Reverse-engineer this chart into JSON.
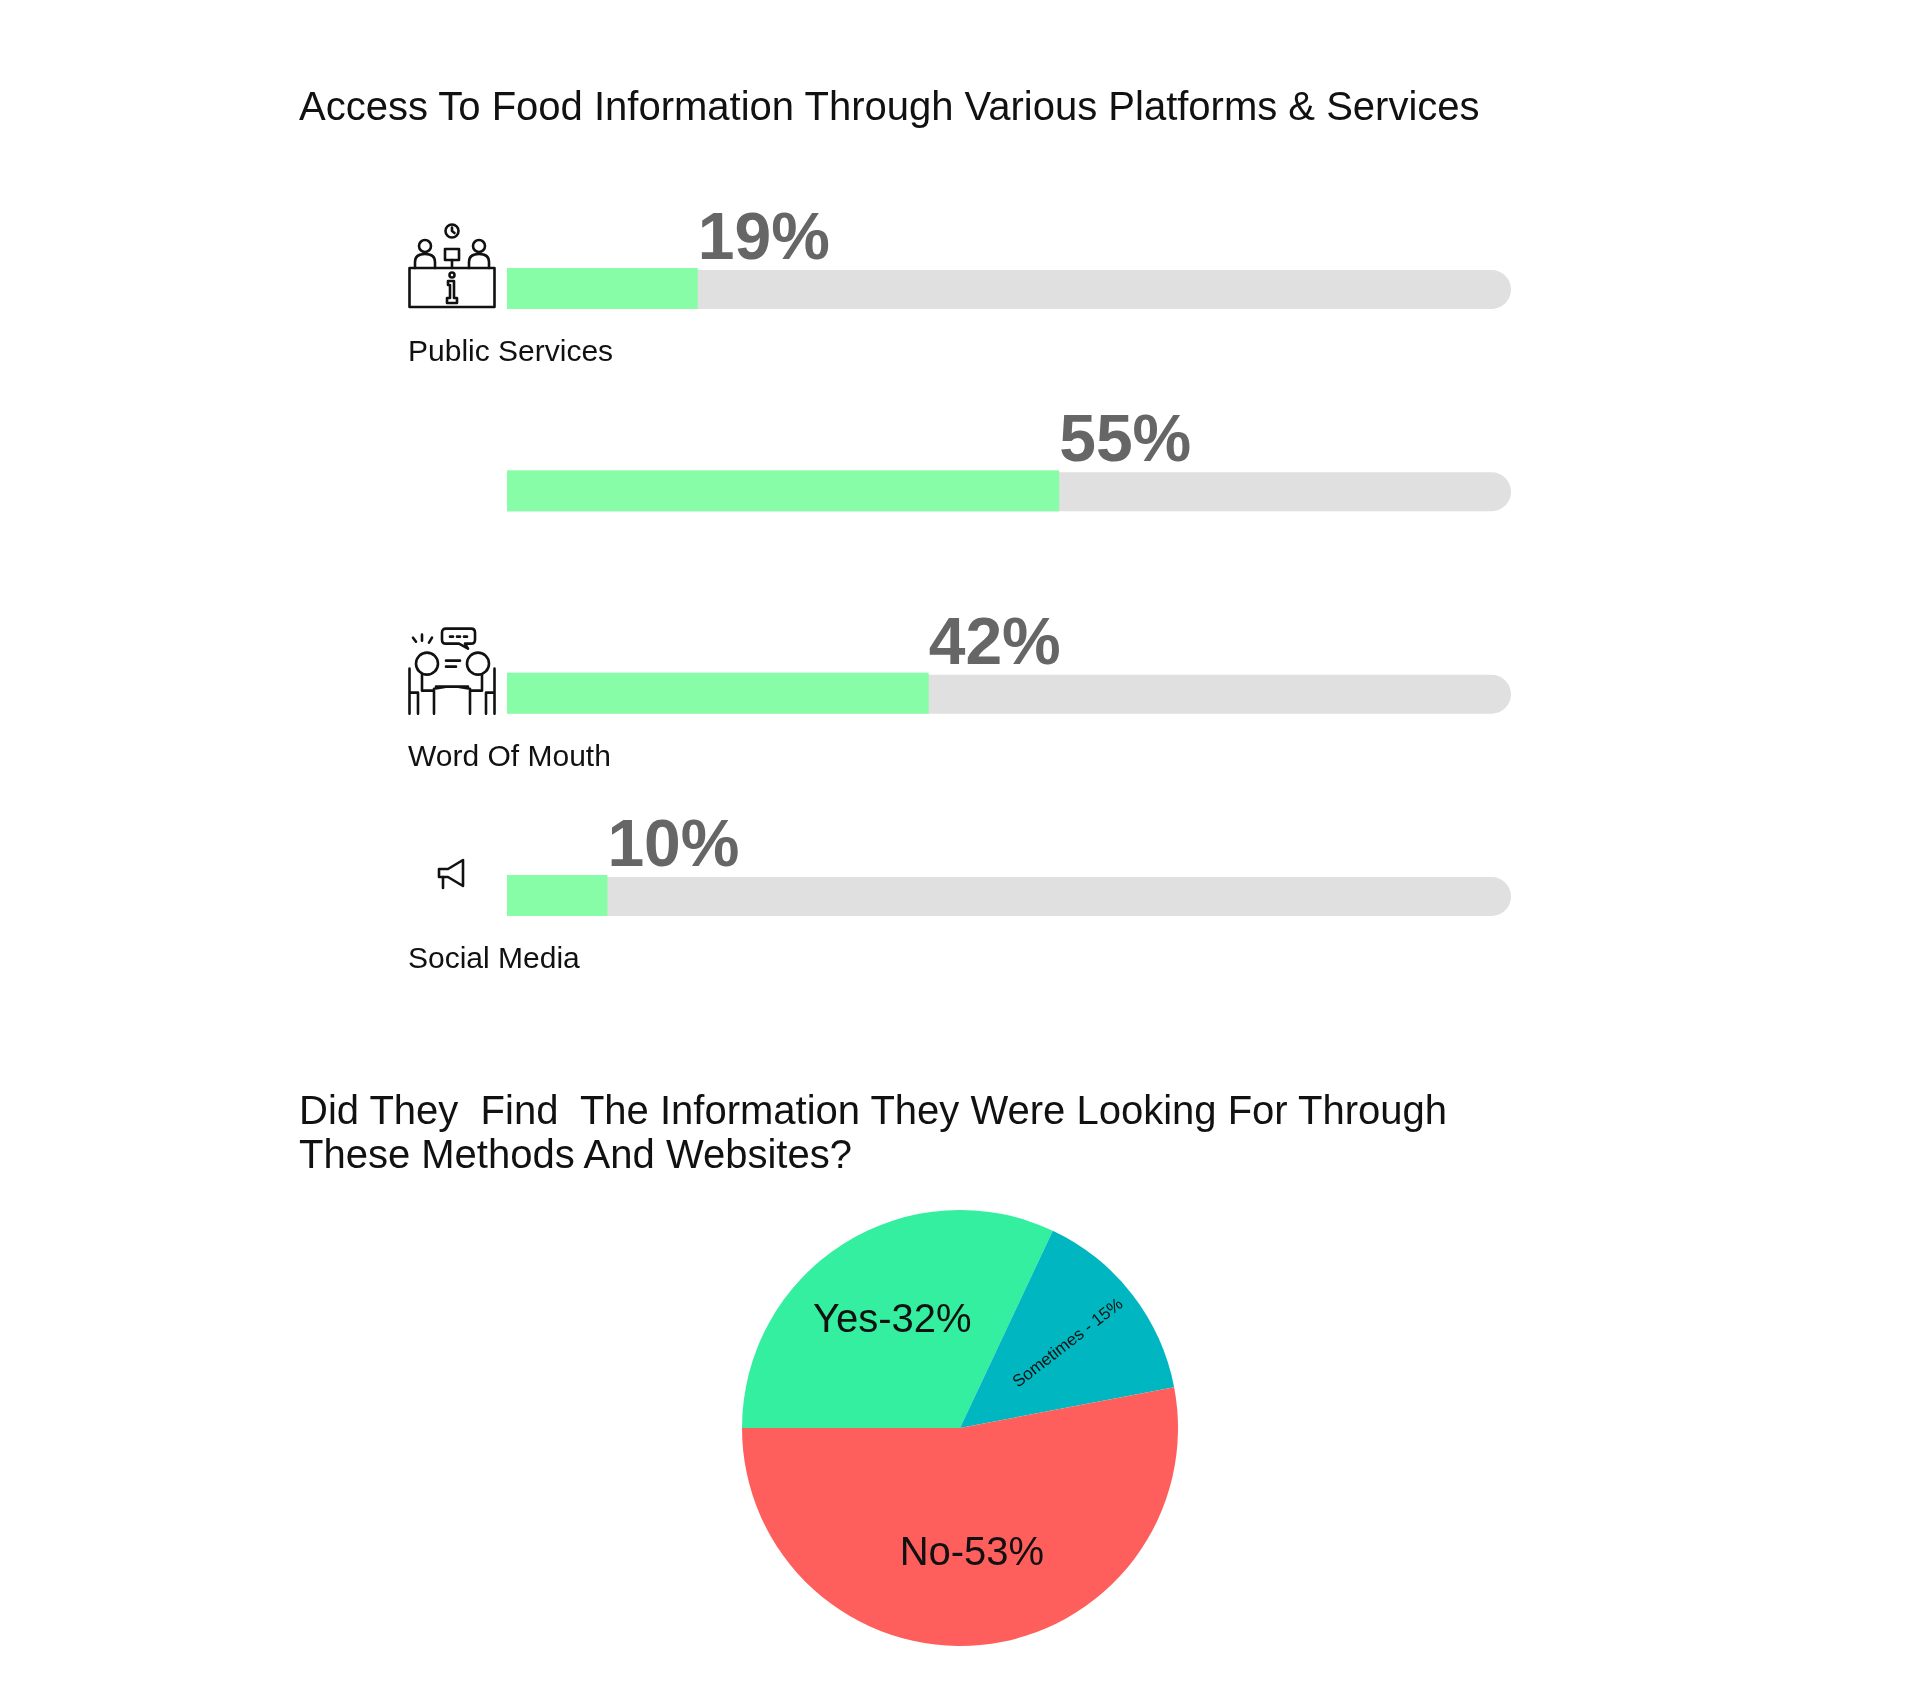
{
  "chart_data": [
    {
      "type": "bar",
      "orientation": "horizontal",
      "title": "Access To Food Information Through Various Platforms & Services",
      "categories": [
        "Public Services",
        null,
        "Word Of Mouth",
        "Social Media"
      ],
      "values": [
        19,
        55,
        42,
        10
      ],
      "color": "#88fda8",
      "value_labels": [
        "19%",
        "55%",
        "42%",
        "10%"
      ],
      "xlim": [
        0,
        100
      ],
      "tick_labels": false
    },
    {
      "type": "pie",
      "title": "Did They  Find  The Information They Were Looking For Through These Methods And Websites?",
      "categories": [
        "Yes-32%",
        "Sometimes - 15%",
        "No-53%"
      ],
      "values": [
        32,
        15,
        53
      ],
      "colors": [
        "#33ef9f",
        "#00b6c0",
        "#ff5f5c"
      ]
    }
  ]
}
